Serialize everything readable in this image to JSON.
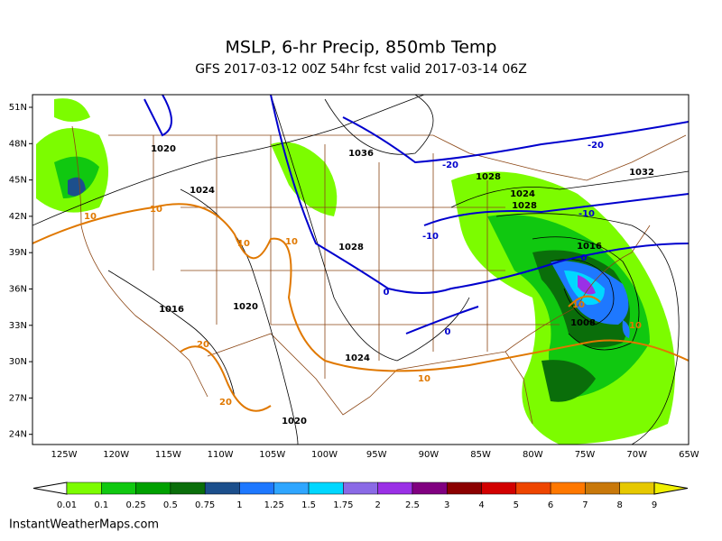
{
  "header": {
    "title": "MSLP, 6-hr Precip, 850mb Temp",
    "subtitle": "GFS 2017-03-12 00Z 54hr fcst valid 2017-03-14 06Z"
  },
  "map": {
    "lat_labels": [
      "51N",
      "48N",
      "45N",
      "42N",
      "39N",
      "36N",
      "33N",
      "30N",
      "27N",
      "24N"
    ],
    "lon_labels": [
      "125W",
      "120W",
      "115W",
      "110W",
      "105W",
      "100W",
      "95W",
      "90W",
      "85W",
      "80W",
      "75W",
      "70W",
      "65W"
    ],
    "isobar_labels": [
      "1020",
      "1036",
      "1024",
      "1028",
      "1020",
      "1016",
      "1024",
      "1020",
      "1028",
      "1024",
      "1028",
      "1032",
      "1016",
      "1008"
    ],
    "isotherm_labels": [
      "-20",
      "-20",
      "-10",
      "-10",
      "0",
      "0",
      "0",
      "10",
      "10",
      "10",
      "10",
      "10",
      "10",
      "10",
      "20",
      "20"
    ]
  },
  "colorbar": {
    "labels": [
      "0.01",
      "0.1",
      "0.25",
      "0.5",
      "0.75",
      "1",
      "1.25",
      "1.5",
      "1.75",
      "2",
      "2.5",
      "3",
      "4",
      "5",
      "6",
      "7",
      "8",
      "9"
    ],
    "colors": [
      "#7cfc00",
      "#10c810",
      "#00a000",
      "#0a6e0a",
      "#1c4f8c",
      "#1e78ff",
      "#2fa6ff",
      "#00d7ff",
      "#8a6ae6",
      "#9a30e6",
      "#800080",
      "#8b0000",
      "#d20000",
      "#ee4500",
      "#ff7800",
      "#c8780a",
      "#e6c800"
    ],
    "end_color": "#f0f000"
  },
  "footer": {
    "credit": "InstantWeatherMaps.com"
  }
}
